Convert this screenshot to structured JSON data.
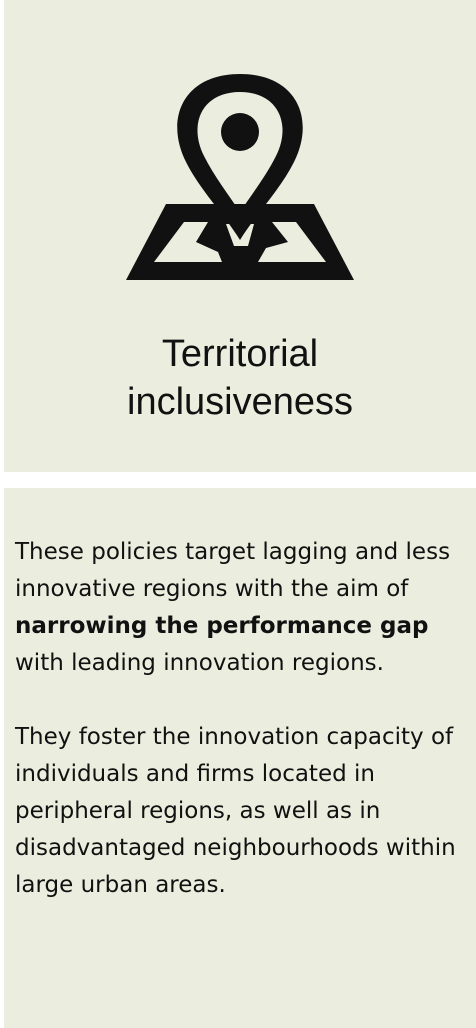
{
  "card": {
    "icon": "map-location-pin-icon",
    "title_line1": "Territorial",
    "title_line2": "inclusiveness",
    "paragraph1": {
      "part1": "These policies target lagging and less innovative regions with the aim of ",
      "bold": "narrowing the performance gap",
      "part2": " with leading innovation regions."
    },
    "paragraph2": "They foster the innovation capacity of individuals and firms located in peripheral regions, as well as in disadvantaged neighbourhoods within large urban areas."
  },
  "colors": {
    "panel_background": "#ebeedf",
    "icon": "#111111",
    "text": "#111111"
  }
}
